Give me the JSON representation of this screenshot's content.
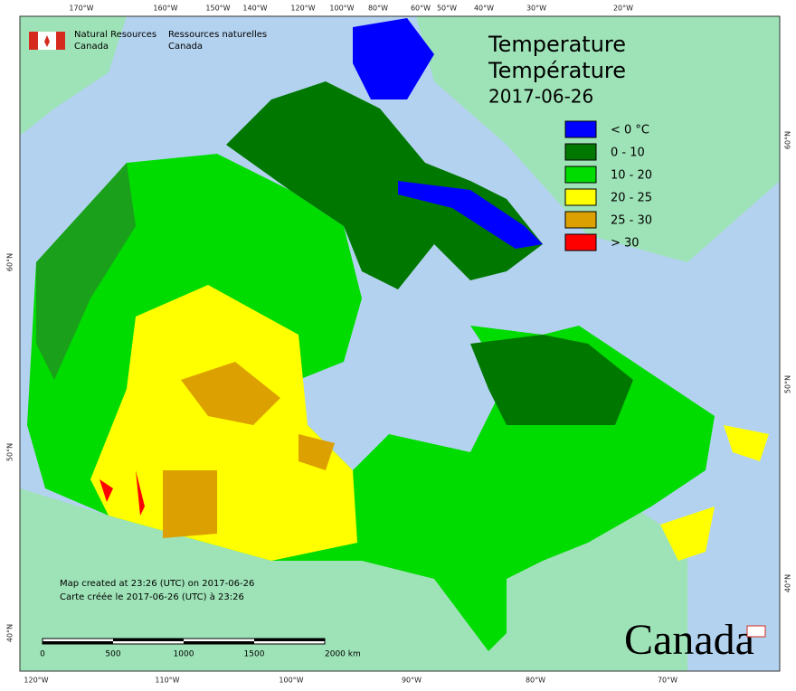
{
  "header": {
    "org_en": [
      "Natural Resources",
      "Canada"
    ],
    "org_fr": [
      "Ressources naturelles",
      "Canada"
    ]
  },
  "title": {
    "en": "Temperature",
    "fr": "Température",
    "date": "2017-06-26"
  },
  "legend": [
    {
      "label": "< 0 °C",
      "color": "#0000ff"
    },
    {
      "label": "0 - 10",
      "color": "#007800"
    },
    {
      "label": "10 - 20",
      "color": "#00dc00"
    },
    {
      "label": "20 - 25",
      "color": "#ffff00"
    },
    {
      "label": "25 - 30",
      "color": "#dca000"
    },
    {
      "label": "> 30",
      "color": "#ff0000"
    }
  ],
  "footer": {
    "created_en": "Map created at 23:26 (UTC) on 2017-06-26",
    "created_fr": "Carte créée le 2017-06-26 (UTC) à 23:26"
  },
  "scale_bar": {
    "labels": [
      "0",
      "500",
      "1000",
      "1500",
      "2000 km"
    ]
  },
  "graticule": {
    "top": [
      "170°W",
      "160°W",
      "150°W",
      "140°W",
      "120°W",
      "100°W",
      "80°W",
      "60°W",
      "50°W",
      "40°W",
      "30°W",
      "20°W"
    ],
    "bottom": [
      "120°W",
      "110°W",
      "100°W",
      "90°W",
      "80°W",
      "70°W"
    ],
    "left": [
      "60°N",
      "50°N",
      "40°N"
    ],
    "right": [
      "60°N",
      "50°N",
      "40°N"
    ]
  },
  "wordmark": "Canada"
}
